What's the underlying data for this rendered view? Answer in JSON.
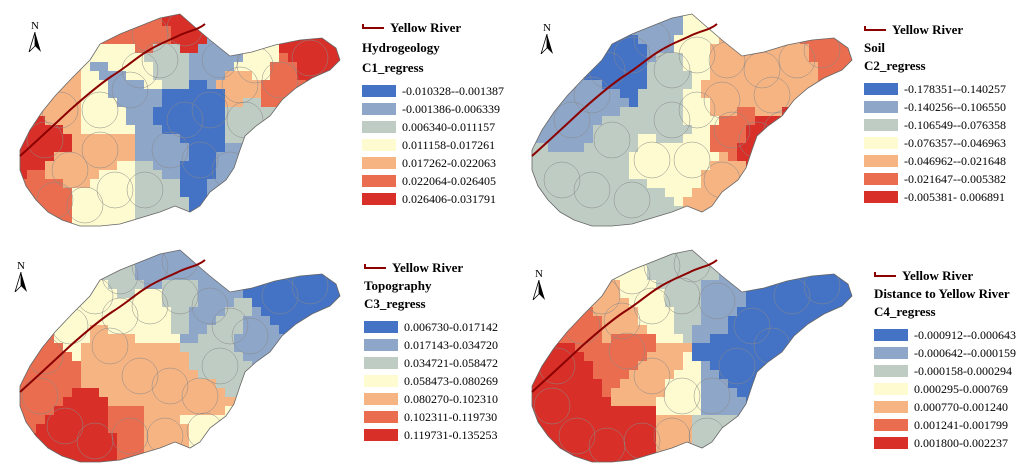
{
  "palettes": {
    "diverging": [
      "#4472c4",
      "#8ea6c8",
      "#bfccc4",
      "#fdfbcf",
      "#f6b483",
      "#ea6d4f",
      "#d83028"
    ]
  },
  "panels": [
    {
      "river_label": "Yellow River",
      "title": "Hydrogeology",
      "subtitle": "C1_regress",
      "ranges": [
        "-0.010328--0.001387",
        "-0.001386-0.006339",
        "0.006340-0.011157",
        "0.011158-0.017261",
        "0.017262-0.022063",
        "0.022064-0.026405",
        "0.026406-0.031791"
      ]
    },
    {
      "river_label": "Yellow River",
      "title": "Soil",
      "subtitle": "C2_regress",
      "ranges": [
        "-0.178351--0.140257",
        "-0.140256--0.106550",
        "-0.106549--0.076358",
        "-0.076357--0.046963",
        "-0.046962--0.021648",
        "-0.021647--0.005382",
        "-0.005381- 0.006891"
      ]
    },
    {
      "river_label": "Yellow River",
      "title": "Topography",
      "subtitle": "C3_regress",
      "ranges": [
        "0.006730-0.017142",
        "0.017143-0.034720",
        "0.034721-0.058472",
        "0.058473-0.080269",
        "0.080270-0.102310",
        "0.102311-0.119730",
        "0.119731-0.135253"
      ]
    },
    {
      "river_label": "Yellow River",
      "title": "Distance to Yellow River",
      "subtitle": "C4_regress",
      "ranges": [
        "-0.000912--0.000643",
        "-0.000642--0.000159",
        "-0.000158-0.000294",
        "0.000295-0.000769",
        "0.000770-0.001240",
        "0.001241-0.001799",
        "0.001800-0.002237"
      ]
    }
  ],
  "north_label": "N"
}
